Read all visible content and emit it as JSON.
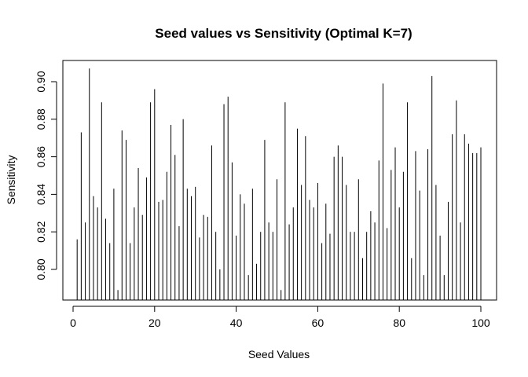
{
  "chart_data": {
    "type": "bar",
    "style": "histogram-spikes",
    "title": "Seed values vs Sensitivity (Optimal K=7)",
    "xlabel": "Seed Values",
    "ylabel": "Sensitivity",
    "xlim": [
      0,
      100
    ],
    "ylim": [
      0.7885,
      0.9068
    ],
    "xticks": [
      0,
      20,
      40,
      60,
      80,
      100
    ],
    "xtick_labels": [
      "0",
      "20",
      "40",
      "60",
      "80",
      "100"
    ],
    "yticks": [
      0.8,
      0.82,
      0.84,
      0.86,
      0.88,
      0.9
    ],
    "ytick_labels": [
      "0.80",
      "0.82",
      "0.84",
      "0.86",
      "0.88",
      "0.90"
    ],
    "x": [
      1,
      2,
      3,
      4,
      5,
      6,
      7,
      8,
      9,
      10,
      11,
      12,
      13,
      14,
      15,
      16,
      17,
      18,
      19,
      20,
      21,
      22,
      23,
      24,
      25,
      26,
      27,
      28,
      29,
      30,
      31,
      32,
      33,
      34,
      35,
      36,
      37,
      38,
      39,
      40,
      41,
      42,
      43,
      44,
      45,
      46,
      47,
      48,
      49,
      50,
      51,
      52,
      53,
      54,
      55,
      56,
      57,
      58,
      59,
      60,
      61,
      62,
      63,
      64,
      65,
      66,
      67,
      68,
      69,
      70,
      71,
      72,
      73,
      74,
      75,
      76,
      77,
      78,
      79,
      80,
      81,
      82,
      83,
      84,
      85,
      86,
      87,
      88,
      89,
      90,
      91,
      92,
      93,
      94,
      95,
      96,
      97,
      98,
      99,
      100
    ],
    "values": [
      0.816,
      0.873,
      0.825,
      0.907,
      0.839,
      0.833,
      0.889,
      0.827,
      0.814,
      0.843,
      0.789,
      0.874,
      0.869,
      0.814,
      0.833,
      0.854,
      0.829,
      0.849,
      0.889,
      0.896,
      0.836,
      0.837,
      0.852,
      0.877,
      0.861,
      0.823,
      0.88,
      0.843,
      0.839,
      0.844,
      0.817,
      0.829,
      0.828,
      0.866,
      0.82,
      0.8,
      0.888,
      0.892,
      0.857,
      0.818,
      0.84,
      0.835,
      0.797,
      0.843,
      0.803,
      0.82,
      0.869,
      0.825,
      0.82,
      0.848,
      0.789,
      0.889,
      0.824,
      0.833,
      0.875,
      0.845,
      0.871,
      0.837,
      0.833,
      0.846,
      0.814,
      0.835,
      0.819,
      0.86,
      0.866,
      0.86,
      0.845,
      0.82,
      0.82,
      0.848,
      0.806,
      0.82,
      0.831,
      0.825,
      0.858,
      0.899,
      0.822,
      0.853,
      0.865,
      0.833,
      0.852,
      0.889,
      0.806,
      0.863,
      0.842,
      0.797,
      0.864,
      0.903,
      0.845,
      0.818,
      0.797,
      0.836,
      0.872,
      0.89,
      0.825,
      0.872,
      0.867,
      0.862,
      0.862,
      0.865
    ]
  }
}
